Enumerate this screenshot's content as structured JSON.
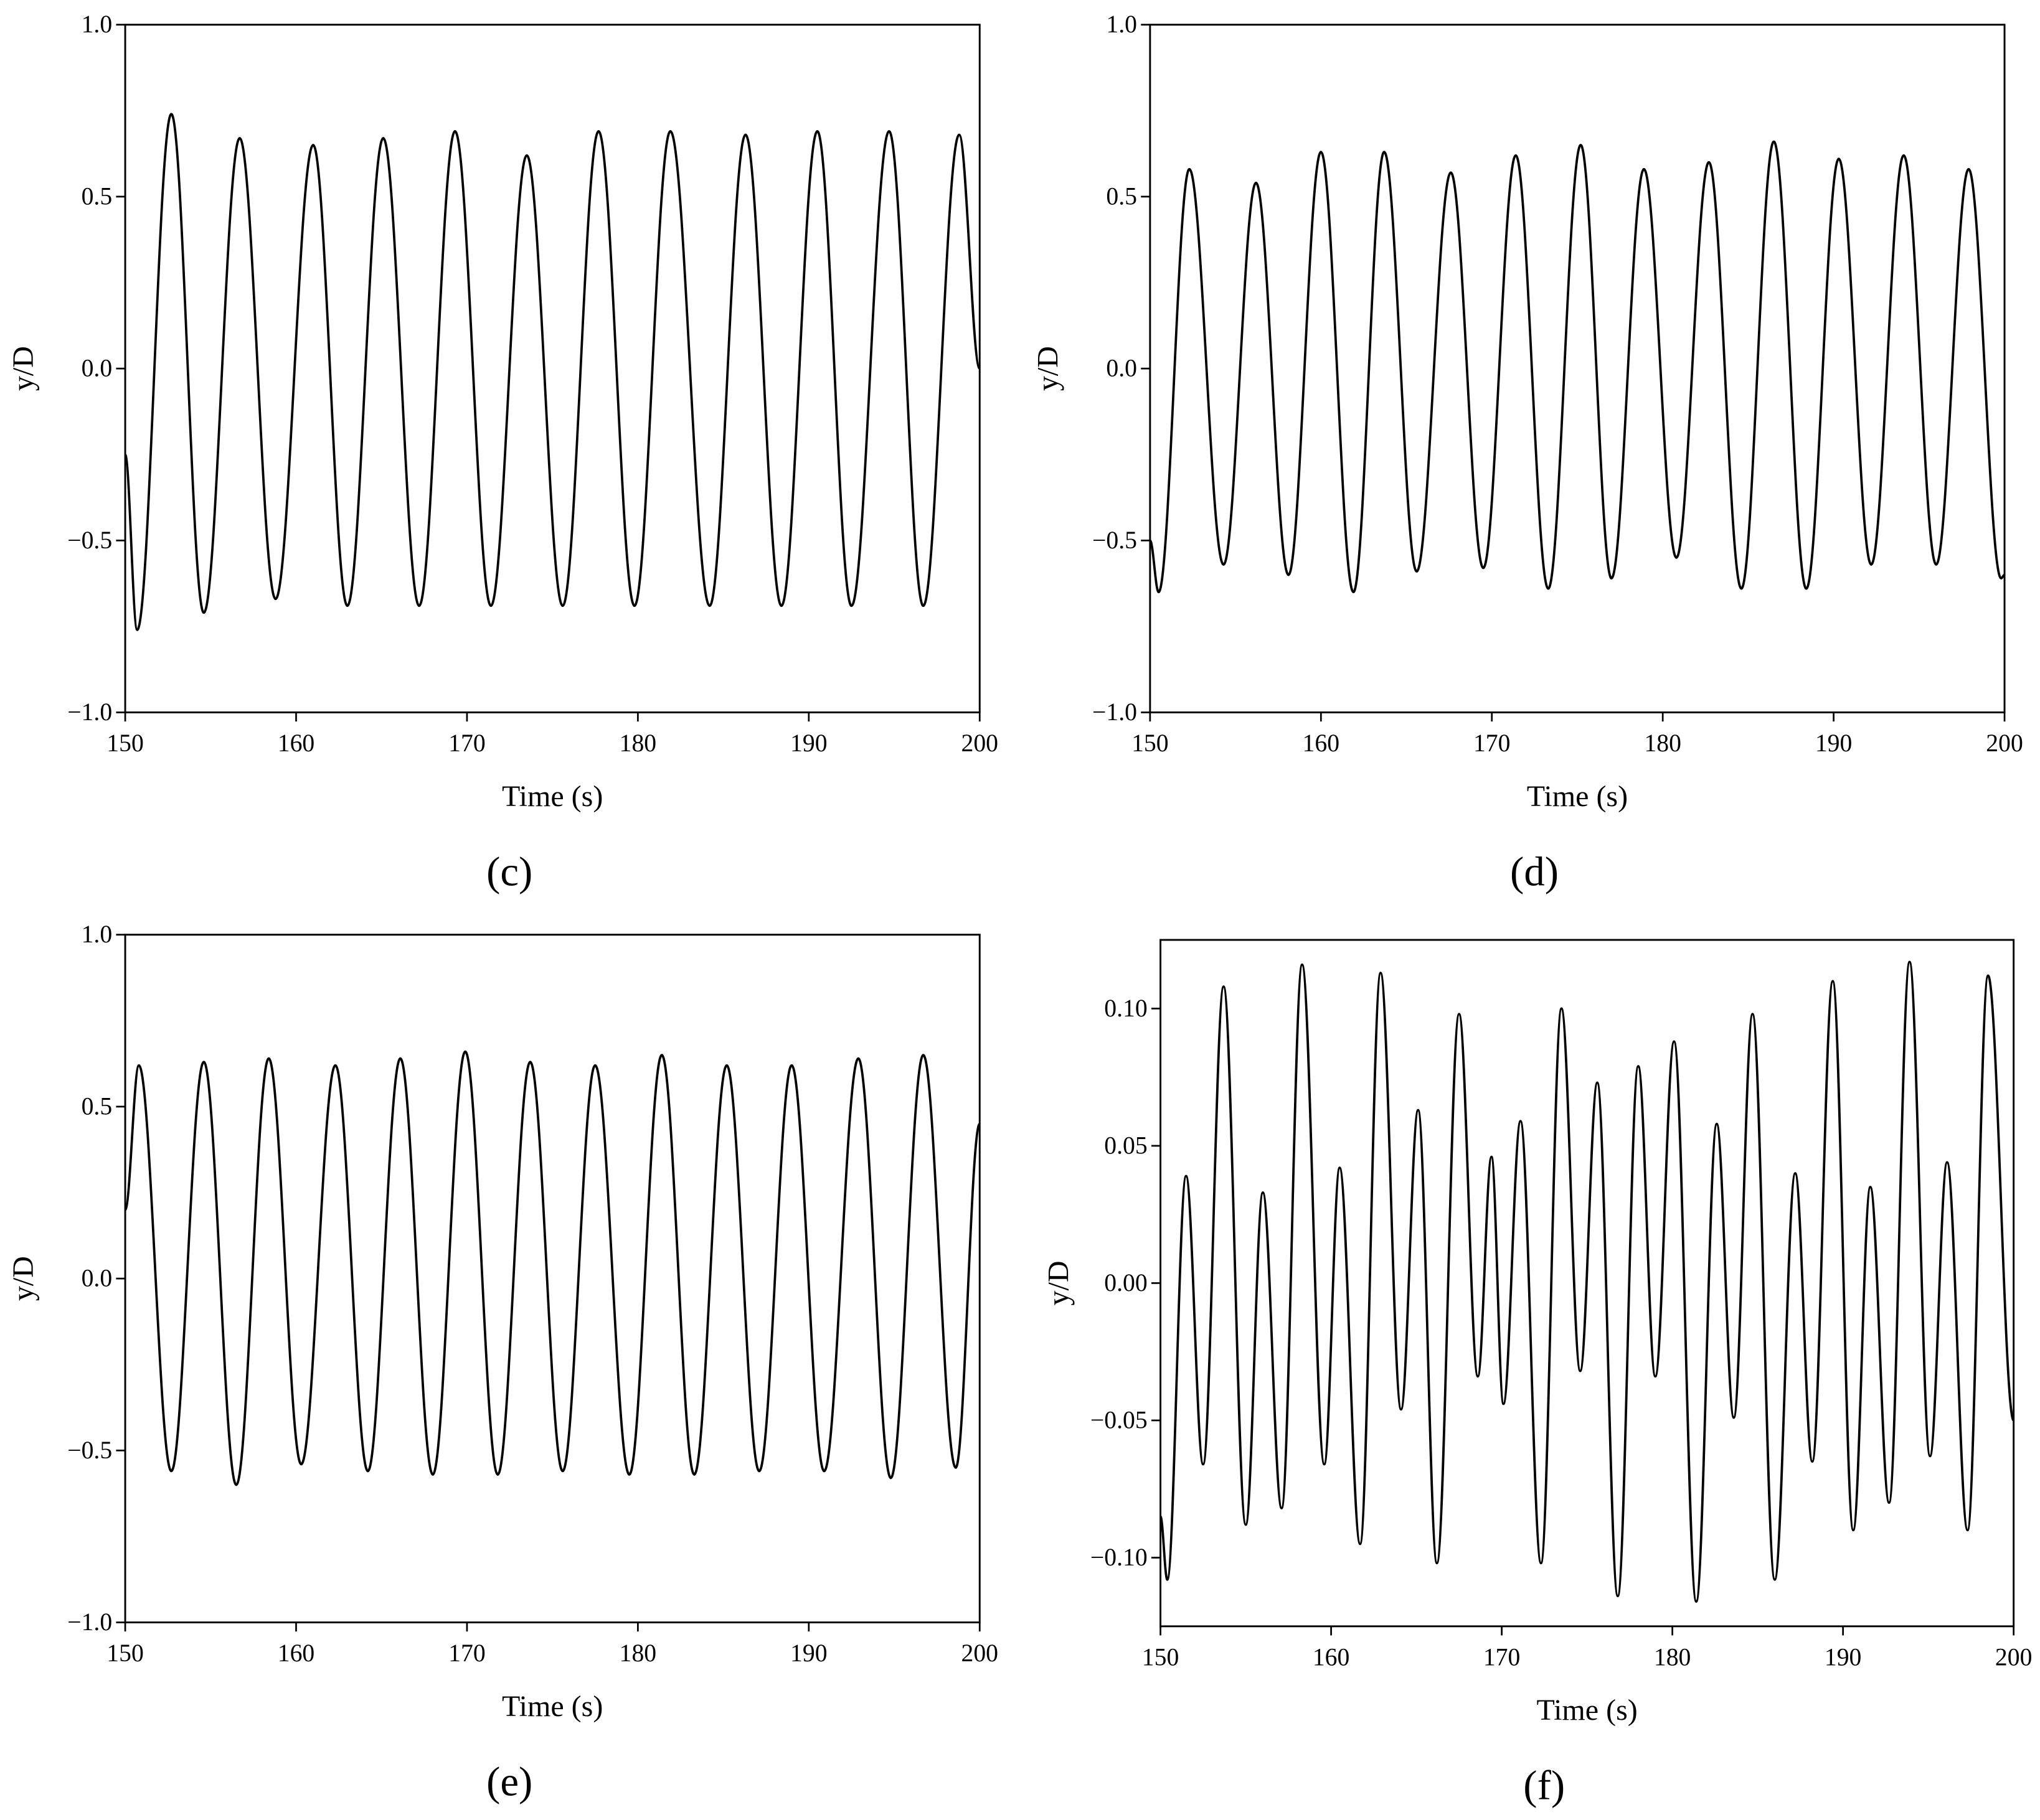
{
  "chart_data": [
    {
      "type": "line",
      "panel": "(c)",
      "xlabel": "Time (s)",
      "ylabel": "y/D",
      "x": [
        150,
        150.7,
        152.7,
        154.6,
        156.7,
        158.8,
        161.0,
        163.0,
        165.1,
        167.2,
        169.3,
        171.4,
        173.5,
        175.6,
        177.7,
        179.8,
        181.9,
        184.2,
        186.3,
        188.4,
        190.5,
        192.5,
        194.7,
        196.7,
        198.8,
        200
      ],
      "series": [
        {
          "color": "#000000",
          "values": [
            -0.25,
            -0.76,
            0.74,
            -0.71,
            0.67,
            -0.67,
            0.65,
            -0.69,
            0.67,
            -0.69,
            0.69,
            -0.69,
            0.62,
            -0.69,
            0.69,
            -0.69,
            0.69,
            -0.69,
            0.68,
            -0.69,
            0.69,
            -0.69,
            0.69,
            -0.69,
            0.68,
            0.0
          ]
        }
      ],
      "xlim": [
        150,
        200
      ],
      "xticks": [
        150,
        160,
        170,
        180,
        190,
        200
      ],
      "ylim": [
        -1,
        1
      ],
      "yticks": [
        {
          "value": -1,
          "label": "−1.0"
        },
        {
          "value": -0.5,
          "label": "−0.5"
        },
        {
          "value": 0,
          "label": "0.0"
        },
        0.5,
        {
          "value": 1,
          "label": "1.0"
        }
      ]
    },
    {
      "type": "line",
      "panel": "(d)",
      "xlabel": "Time (s)",
      "ylabel": "y/D",
      "x": [
        150,
        150.5,
        152.3,
        154.3,
        156.2,
        158.1,
        160.0,
        161.9,
        163.7,
        165.6,
        167.6,
        169.5,
        171.4,
        173.3,
        175.2,
        177.0,
        178.9,
        180.8,
        182.7,
        184.6,
        186.5,
        188.4,
        190.3,
        192.2,
        194.1,
        196.0,
        197.9,
        199.8,
        200
      ],
      "series": [
        {
          "color": "#000000",
          "values": [
            -0.5,
            -0.65,
            0.58,
            -0.57,
            0.54,
            -0.6,
            0.63,
            -0.65,
            0.63,
            -0.59,
            0.57,
            -0.58,
            0.62,
            -0.64,
            0.65,
            -0.61,
            0.58,
            -0.55,
            0.6,
            -0.64,
            0.66,
            -0.64,
            0.61,
            -0.57,
            0.62,
            -0.57,
            0.58,
            -0.61,
            -0.6
          ]
        }
      ],
      "xlim": [
        150,
        200
      ],
      "xticks": [
        150,
        160,
        170,
        180,
        190,
        200
      ],
      "ylim": [
        -1,
        1
      ],
      "yticks": [
        {
          "value": -1,
          "label": "−1.0"
        },
        {
          "value": -0.5,
          "label": "−0.5"
        },
        {
          "value": 0,
          "label": "0.0"
        },
        0.5,
        {
          "value": 1,
          "label": "1.0"
        }
      ]
    },
    {
      "type": "line",
      "panel": "(e)",
      "xlabel": "Time (s)",
      "ylabel": "y/D",
      "x": [
        150,
        150.8,
        152.7,
        154.6,
        156.5,
        158.4,
        160.3,
        162.3,
        164.2,
        166.1,
        168.0,
        169.9,
        171.8,
        173.7,
        175.6,
        177.5,
        179.5,
        181.4,
        183.3,
        185.2,
        187.1,
        189.0,
        190.9,
        192.9,
        194.8,
        196.7,
        198.6,
        200
      ],
      "series": [
        {
          "color": "#000000",
          "values": [
            0.2,
            0.62,
            -0.56,
            0.63,
            -0.6,
            0.64,
            -0.54,
            0.62,
            -0.56,
            0.64,
            -0.57,
            0.66,
            -0.57,
            0.63,
            -0.56,
            0.62,
            -0.57,
            0.65,
            -0.57,
            0.62,
            -0.56,
            0.62,
            -0.56,
            0.64,
            -0.58,
            0.65,
            -0.55,
            0.45
          ]
        }
      ],
      "xlim": [
        150,
        200
      ],
      "xticks": [
        150,
        160,
        170,
        180,
        190,
        200
      ],
      "ylim": [
        -1,
        1
      ],
      "yticks": [
        {
          "value": -1,
          "label": "−1.0"
        },
        {
          "value": -0.5,
          "label": "−0.5"
        },
        {
          "value": 0,
          "label": "0.0"
        },
        0.5,
        {
          "value": 1,
          "label": "1.0"
        }
      ]
    },
    {
      "type": "line",
      "panel": "(f)",
      "xlabel": "Time (s)",
      "ylabel": "y/D",
      "x": [
        150,
        150.4,
        151.5,
        152.5,
        153.7,
        155.0,
        156.0,
        157.1,
        158.3,
        159.6,
        160.5,
        161.7,
        162.9,
        164.1,
        165.1,
        166.2,
        167.5,
        168.6,
        169.4,
        170.1,
        171.1,
        172.3,
        173.5,
        174.6,
        175.6,
        176.8,
        178.0,
        179.0,
        180.1,
        181.4,
        182.6,
        183.6,
        184.7,
        186.0,
        187.2,
        188.2,
        189.4,
        190.6,
        191.6,
        192.7,
        193.9,
        195.1,
        196.1,
        197.3,
        198.5,
        200
      ],
      "series": [
        {
          "color": "#000000",
          "values": [
            -0.085,
            -0.108,
            0.039,
            -0.066,
            0.108,
            -0.088,
            0.033,
            -0.082,
            0.116,
            -0.066,
            0.042,
            -0.095,
            0.113,
            -0.046,
            0.063,
            -0.102,
            0.098,
            -0.034,
            0.046,
            -0.044,
            0.059,
            -0.102,
            0.1,
            -0.032,
            0.073,
            -0.114,
            0.079,
            -0.034,
            0.088,
            -0.116,
            0.058,
            -0.049,
            0.098,
            -0.108,
            0.04,
            -0.065,
            0.11,
            -0.09,
            0.035,
            -0.08,
            0.117,
            -0.063,
            0.044,
            -0.09,
            0.112,
            -0.05
          ]
        }
      ],
      "xlim": [
        150,
        200
      ],
      "xticks": [
        150,
        160,
        170,
        180,
        190,
        200
      ],
      "ylim": [
        -0.125,
        0.125
      ],
      "yticks": [
        {
          "value": -0.1,
          "label": "−0.10"
        },
        {
          "value": -0.05,
          "label": "−0.05"
        },
        {
          "value": 0,
          "label": "0.00"
        },
        0.05,
        {
          "value": 0.1,
          "label": "0.10"
        }
      ]
    }
  ]
}
